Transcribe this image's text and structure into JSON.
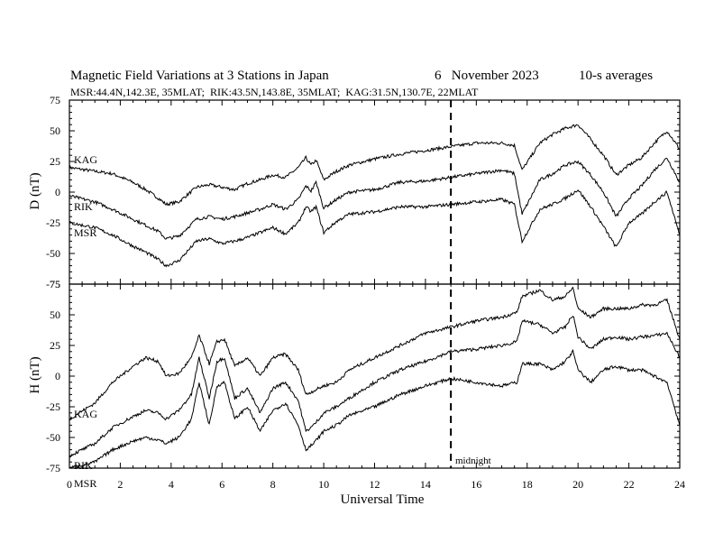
{
  "header": {
    "title": "Magnetic Field Variations at 3 Stations in Japan",
    "date": "6   November 2023",
    "averaging": "10-s averages",
    "stations_line": "MSR:44.4N,142.3E, 35MLAT;  RIK:43.5N,143.8E, 35MLAT;  KAG:31.5N,130.7E, 22MLAT"
  },
  "chart_data": [
    {
      "type": "line",
      "ylabel": "D (nT)",
      "xlim": [
        0,
        24
      ],
      "ylim": [
        -75,
        75
      ],
      "yticks": [
        "75",
        "50",
        "25",
        "0",
        "-25",
        "-50",
        "-75"
      ],
      "grid": false,
      "x": [
        0,
        1,
        1.7,
        2.5,
        3,
        3.5,
        3.8,
        4.3,
        5,
        5.5,
        6,
        6.5,
        7,
        7.5,
        8,
        8.5,
        9,
        9.3,
        9.5,
        9.7,
        10,
        10.5,
        11,
        12,
        13,
        14,
        15,
        16,
        17,
        17.5,
        17.8,
        18.5,
        19,
        19.5,
        20,
        20.5,
        21,
        21.5,
        22,
        22.5,
        23,
        23.5,
        24
      ],
      "series": [
        {
          "name": "KAG",
          "values": [
            20,
            17,
            15,
            8,
            2,
            -5,
            -10,
            -8,
            4,
            6,
            4,
            2,
            7,
            10,
            14,
            12,
            20,
            28,
            22,
            26,
            10,
            17,
            22,
            27,
            31,
            34,
            37,
            40,
            40,
            38,
            18,
            40,
            47,
            52,
            55,
            43,
            30,
            14,
            22,
            28,
            40,
            50,
            35
          ]
        },
        {
          "name": "RIK",
          "values": [
            -3,
            -8,
            -14,
            -22,
            -27,
            -32,
            -38,
            -36,
            -22,
            -20,
            -22,
            -20,
            -17,
            -14,
            -10,
            -14,
            -6,
            5,
            1,
            8,
            -13,
            -6,
            0,
            2,
            8,
            9,
            12,
            15,
            18,
            15,
            -18,
            10,
            15,
            22,
            25,
            14,
            0,
            -20,
            -5,
            5,
            18,
            28,
            8
          ]
        },
        {
          "name": "MSR",
          "values": [
            -25,
            -29,
            -35,
            -44,
            -49,
            -55,
            -60,
            -56,
            -40,
            -38,
            -42,
            -40,
            -37,
            -33,
            -29,
            -34,
            -25,
            -12,
            -16,
            -12,
            -33,
            -24,
            -18,
            -16,
            -12,
            -12,
            -10,
            -8,
            -6,
            -10,
            -40,
            -14,
            -10,
            -5,
            2,
            -12,
            -28,
            -45,
            -25,
            -18,
            -8,
            0,
            -35
          ]
        }
      ]
    },
    {
      "type": "line",
      "ylabel": "H (nT)",
      "xlabel": "Universal Time",
      "xlim": [
        0,
        24
      ],
      "ylim": [
        -75,
        75
      ],
      "xticks": [
        "0",
        "2",
        "4",
        "6",
        "8",
        "10",
        "12",
        "14",
        "16",
        "18",
        "20",
        "22",
        "24"
      ],
      "yticks": [
        "75",
        "50",
        "25",
        "0",
        "-25",
        "-50",
        "-75"
      ],
      "grid": false,
      "annotation": {
        "x": 15,
        "label": "midnight",
        "style": "dashed"
      },
      "x": [
        0,
        1,
        1.7,
        2.5,
        3,
        3.5,
        3.8,
        4.3,
        4.8,
        5.1,
        5.5,
        5.8,
        6.1,
        6.5,
        7,
        7.5,
        8,
        8.5,
        9,
        9.3,
        9.6,
        10,
        10.5,
        11,
        12,
        13,
        14,
        15,
        16,
        17,
        17.6,
        17.8,
        18.5,
        19,
        19.5,
        19.8,
        20,
        20.5,
        21,
        21.5,
        22,
        22.5,
        23,
        23.5,
        24
      ],
      "series": [
        {
          "name": "KAG",
          "values": [
            -35,
            -22,
            -5,
            8,
            15,
            12,
            0,
            2,
            15,
            33,
            10,
            28,
            30,
            8,
            15,
            0,
            15,
            18,
            5,
            -15,
            -12,
            -8,
            -5,
            5,
            15,
            25,
            35,
            40,
            45,
            48,
            52,
            65,
            70,
            62,
            65,
            72,
            55,
            48,
            55,
            55,
            55,
            58,
            58,
            62,
            30
          ]
        },
        {
          "name": "RIK",
          "values": [
            -65,
            -55,
            -42,
            -33,
            -28,
            -30,
            -35,
            -28,
            -15,
            15,
            -18,
            12,
            15,
            -18,
            -10,
            -30,
            -10,
            -5,
            -20,
            -45,
            -40,
            -30,
            -25,
            -18,
            -5,
            5,
            12,
            20,
            22,
            25,
            28,
            45,
            42,
            35,
            40,
            50,
            32,
            22,
            30,
            32,
            30,
            32,
            33,
            35,
            15
          ]
        },
        {
          "name": "MSR",
          "values": [
            -75,
            -70,
            -60,
            -53,
            -50,
            -52,
            -55,
            -50,
            -35,
            -5,
            -40,
            -8,
            -5,
            -35,
            -25,
            -45,
            -28,
            -22,
            -40,
            -60,
            -55,
            -45,
            -40,
            -32,
            -25,
            -15,
            -8,
            -2,
            -5,
            -8,
            -5,
            10,
            10,
            5,
            12,
            20,
            5,
            -5,
            5,
            8,
            5,
            5,
            0,
            -5,
            -40
          ]
        }
      ]
    }
  ]
}
